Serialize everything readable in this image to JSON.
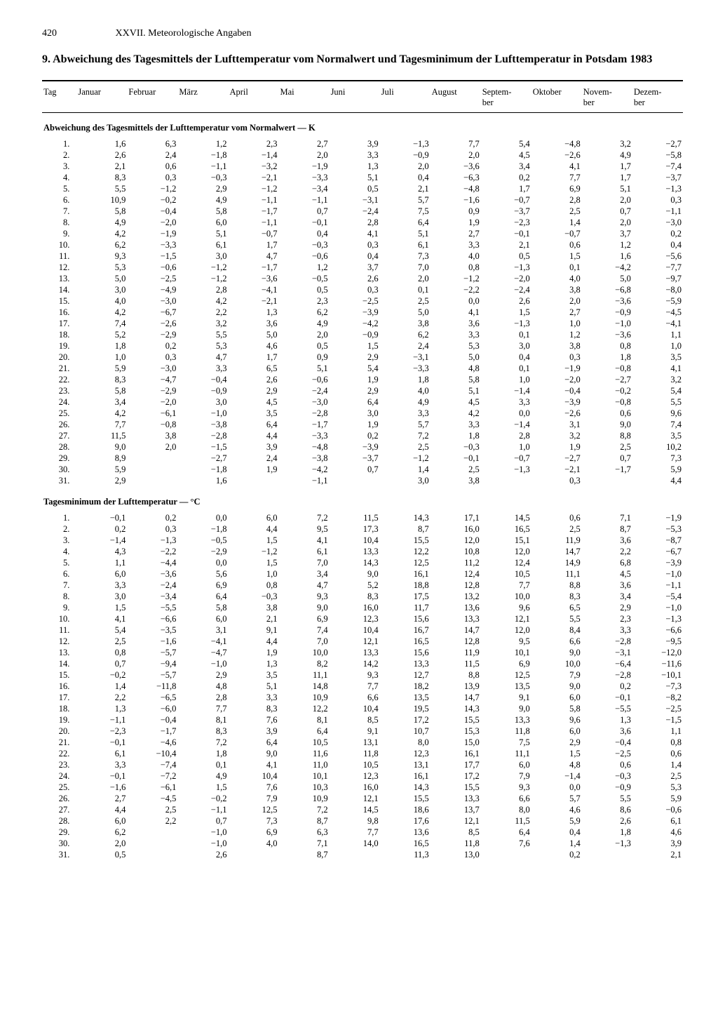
{
  "page_number": "420",
  "running_head": "XXVII. Meteorologische Angaben",
  "title": "9. Abweichung des Tagesmittels der Lufttemperatur vom Normalwert und Tagesminimum der Lufttemperatur in Potsdam 1983",
  "col_day": "Tag",
  "months": [
    "Januar",
    "Februar",
    "März",
    "April",
    "Mai",
    "Juni",
    "Juli",
    "August",
    "Septem-\nber",
    "Oktober",
    "Novem-\nber",
    "Dezem-\nber"
  ],
  "section1": "Abweichung des Tagesmittels der Lufttemperatur vom Normalwert — K",
  "section2": "Tagesminimum der Lufttemperatur — °C",
  "t1": [
    [
      "1,6",
      "6,3",
      "1,2",
      "2,3",
      "2,7",
      "3,9",
      "−1,3",
      "7,7",
      "5,4",
      "−4,8",
      "3,2",
      "−2,7"
    ],
    [
      "2,6",
      "2,4",
      "−1,8",
      "−1,4",
      "2,0",
      "3,3",
      "−0,9",
      "2,0",
      "4,5",
      "−2,6",
      "4,9",
      "−5,8"
    ],
    [
      "2,1",
      "0,6",
      "−1,1",
      "−3,2",
      "−1,9",
      "1,3",
      "2,0",
      "−3,6",
      "3,4",
      "4,1",
      "1,7",
      "−7,4"
    ],
    [
      "8,3",
      "0,3",
      "−0,3",
      "−2,1",
      "−3,3",
      "5,1",
      "0,4",
      "−6,3",
      "0,2",
      "7,7",
      "1,7",
      "−3,7"
    ],
    [
      "5,5",
      "−1,2",
      "2,9",
      "−1,2",
      "−3,4",
      "0,5",
      "2,1",
      "−4,8",
      "1,7",
      "6,9",
      "5,1",
      "−1,3"
    ],
    [
      "10,9",
      "−0,2",
      "4,9",
      "−1,1",
      "−1,1",
      "−3,1",
      "5,7",
      "−1,6",
      "−0,7",
      "2,8",
      "2,0",
      "0,3"
    ],
    [
      "5,8",
      "−0,4",
      "5,8",
      "−1,7",
      "0,7",
      "−2,4",
      "7,5",
      "0,9",
      "−3,7",
      "2,5",
      "0,7",
      "−1,1"
    ],
    [
      "4,9",
      "−2,0",
      "6,0",
      "−1,1",
      "−0,1",
      "2,8",
      "6,4",
      "1,9",
      "−2,3",
      "1,4",
      "2,0",
      "−3,0"
    ],
    [
      "4,2",
      "−1,9",
      "5,1",
      "−0,7",
      "0,4",
      "4,1",
      "5,1",
      "2,7",
      "−0,1",
      "−0,7",
      "3,7",
      "0,2"
    ],
    [
      "6,2",
      "−3,3",
      "6,1",
      "1,7",
      "−0,3",
      "0,3",
      "6,1",
      "3,3",
      "2,1",
      "0,6",
      "1,2",
      "0,4"
    ],
    [
      "9,3",
      "−1,5",
      "3,0",
      "4,7",
      "−0,6",
      "0,4",
      "7,3",
      "4,0",
      "0,5",
      "1,5",
      "1,6",
      "−5,6"
    ],
    [
      "5,3",
      "−0,6",
      "−1,2",
      "−1,7",
      "1,2",
      "3,7",
      "7,0",
      "0,8",
      "−1,3",
      "0,1",
      "−4,2",
      "−7,7"
    ],
    [
      "5,0",
      "−2,5",
      "−1,2",
      "−3,6",
      "−0,5",
      "2,6",
      "2,0",
      "−1,2",
      "−2,0",
      "4,0",
      "5,0",
      "−9,7"
    ],
    [
      "3,0",
      "−4,9",
      "2,8",
      "−4,1",
      "0,5",
      "0,3",
      "0,1",
      "−2,2",
      "−2,4",
      "3,8",
      "−6,8",
      "−8,0"
    ],
    [
      "4,0",
      "−3,0",
      "4,2",
      "−2,1",
      "2,3",
      "−2,5",
      "2,5",
      "0,0",
      "2,6",
      "2,0",
      "−3,6",
      "−5,9"
    ],
    [
      "4,2",
      "−6,7",
      "2,2",
      "1,3",
      "6,2",
      "−3,9",
      "5,0",
      "4,1",
      "1,5",
      "2,7",
      "−0,9",
      "−4,5"
    ],
    [
      "7,4",
      "−2,6",
      "3,2",
      "3,6",
      "4,9",
      "−4,2",
      "3,8",
      "3,6",
      "−1,3",
      "1,0",
      "−1,0",
      "−4,1"
    ],
    [
      "5,2",
      "−2,9",
      "5,5",
      "5,0",
      "2,0",
      "−0,9",
      "6,2",
      "3,3",
      "0,1",
      "1,2",
      "−3,6",
      "1,1"
    ],
    [
      "1,8",
      "0,2",
      "5,3",
      "4,6",
      "0,5",
      "1,5",
      "2,4",
      "5,3",
      "3,0",
      "3,8",
      "0,8",
      "1,0"
    ],
    [
      "1,0",
      "0,3",
      "4,7",
      "1,7",
      "0,9",
      "2,9",
      "−3,1",
      "5,0",
      "0,4",
      "0,3",
      "1,8",
      "3,5"
    ],
    [
      "5,9",
      "−3,0",
      "3,3",
      "6,5",
      "5,1",
      "5,4",
      "−3,3",
      "4,8",
      "0,1",
      "−1,9",
      "−0,8",
      "4,1"
    ],
    [
      "8,3",
      "−4,7",
      "−0,4",
      "2,6",
      "−0,6",
      "1,9",
      "1,8",
      "5,8",
      "1,0",
      "−2,0",
      "−2,7",
      "3,2"
    ],
    [
      "5,8",
      "−2,9",
      "−0,9",
      "2,9",
      "−2,4",
      "2,9",
      "4,0",
      "5,1",
      "−1,4",
      "−0,4",
      "−0,2",
      "5,4"
    ],
    [
      "3,4",
      "−2,0",
      "3,0",
      "4,5",
      "−3,0",
      "6,4",
      "4,9",
      "4,5",
      "3,3",
      "−3,9",
      "−0,8",
      "5,5"
    ],
    [
      "4,2",
      "−6,1",
      "−1,0",
      "3,5",
      "−2,8",
      "3,0",
      "3,3",
      "4,2",
      "0,0",
      "−2,6",
      "0,6",
      "9,6"
    ],
    [
      "7,7",
      "−0,8",
      "−3,8",
      "6,4",
      "−1,7",
      "1,9",
      "5,7",
      "3,3",
      "−1,4",
      "3,1",
      "9,0",
      "7,4"
    ],
    [
      "11,5",
      "3,8",
      "−2,8",
      "4,4",
      "−3,3",
      "0,2",
      "7,2",
      "1,8",
      "2,8",
      "3,2",
      "8,8",
      "3,5"
    ],
    [
      "9,0",
      "2,0",
      "−1,5",
      "3,9",
      "−4,8",
      "−3,9",
      "2,5",
      "−0,3",
      "1,0",
      "1,9",
      "2,5",
      "10,2"
    ],
    [
      "8,9",
      "",
      "−2,7",
      "2,4",
      "−3,8",
      "−3,7",
      "−1,2",
      "−0,1",
      "−0,7",
      "−2,7",
      "0,7",
      "7,3"
    ],
    [
      "5,9",
      "",
      "−1,8",
      "1,9",
      "−4,2",
      "0,7",
      "1,4",
      "2,5",
      "−1,3",
      "−2,1",
      "−1,7",
      "5,9"
    ],
    [
      "2,9",
      "",
      "1,6",
      "",
      "−1,1",
      "",
      "3,0",
      "3,8",
      "",
      "0,3",
      "",
      "4,4"
    ]
  ],
  "t2": [
    [
      "−0,1",
      "0,2",
      "0,0",
      "6,0",
      "7,2",
      "11,5",
      "14,3",
      "17,1",
      "14,5",
      "0,6",
      "7,1",
      "−1,9"
    ],
    [
      "0,2",
      "0,3",
      "−1,8",
      "4,4",
      "9,5",
      "17,3",
      "8,7",
      "16,0",
      "16,5",
      "2,5",
      "8,7",
      "−5,3"
    ],
    [
      "−1,4",
      "−1,3",
      "−0,5",
      "1,5",
      "4,1",
      "10,4",
      "15,5",
      "12,0",
      "15,1",
      "11,9",
      "3,6",
      "−8,7"
    ],
    [
      "4,3",
      "−2,2",
      "−2,9",
      "−1,2",
      "6,1",
      "13,3",
      "12,2",
      "10,8",
      "12,0",
      "14,7",
      "2,2",
      "−6,7"
    ],
    [
      "1,1",
      "−4,4",
      "0,0",
      "1,5",
      "7,0",
      "14,3",
      "12,5",
      "11,2",
      "12,4",
      "14,9",
      "6,8",
      "−3,9"
    ],
    [
      "6,0",
      "−3,6",
      "5,6",
      "1,0",
      "3,4",
      "9,0",
      "16,1",
      "12,4",
      "10,5",
      "11,1",
      "4,5",
      "−1,0"
    ],
    [
      "3,3",
      "−2,4",
      "6,9",
      "0,8",
      "4,7",
      "5,2",
      "18,8",
      "12,8",
      "7,7",
      "8,8",
      "3,6",
      "−1,1"
    ],
    [
      "3,0",
      "−3,4",
      "6,4",
      "−0,3",
      "9,3",
      "8,3",
      "17,5",
      "13,2",
      "10,0",
      "8,3",
      "3,4",
      "−5,4"
    ],
    [
      "1,5",
      "−5,5",
      "5,8",
      "3,8",
      "9,0",
      "16,0",
      "11,7",
      "13,6",
      "9,6",
      "6,5",
      "2,9",
      "−1,0"
    ],
    [
      "4,1",
      "−6,6",
      "6,0",
      "2,1",
      "6,9",
      "12,3",
      "15,6",
      "13,3",
      "12,1",
      "5,5",
      "2,3",
      "−1,3"
    ],
    [
      "5,4",
      "−3,5",
      "3,1",
      "9,1",
      "7,4",
      "10,4",
      "16,7",
      "14,7",
      "12,0",
      "8,4",
      "3,3",
      "−6,6"
    ],
    [
      "2,5",
      "−1,6",
      "−4,1",
      "4,4",
      "7,0",
      "12,1",
      "16,5",
      "12,8",
      "9,5",
      "6,6",
      "−2,8",
      "−9,5"
    ],
    [
      "0,8",
      "−5,7",
      "−4,7",
      "1,9",
      "10,0",
      "13,3",
      "15,6",
      "11,9",
      "10,1",
      "9,0",
      "−3,1",
      "−12,0"
    ],
    [
      "0,7",
      "−9,4",
      "−1,0",
      "1,3",
      "8,2",
      "14,2",
      "13,3",
      "11,5",
      "6,9",
      "10,0",
      "−6,4",
      "−11,6"
    ],
    [
      "−0,2",
      "−5,7",
      "2,9",
      "3,5",
      "11,1",
      "9,3",
      "12,7",
      "8,8",
      "12,5",
      "7,9",
      "−2,8",
      "−10,1"
    ],
    [
      "1,4",
      "−11,8",
      "4,8",
      "5,1",
      "14,8",
      "7,7",
      "18,2",
      "13,9",
      "13,5",
      "9,0",
      "0,2",
      "−7,3"
    ],
    [
      "2,2",
      "−6,5",
      "2,8",
      "3,3",
      "10,9",
      "6,6",
      "13,5",
      "14,7",
      "9,1",
      "6,0",
      "−0,1",
      "−8,2"
    ],
    [
      "1,3",
      "−6,0",
      "7,7",
      "8,3",
      "12,2",
      "10,4",
      "19,5",
      "14,3",
      "9,0",
      "5,8",
      "−5,5",
      "−2,5"
    ],
    [
      "−1,1",
      "−0,4",
      "8,1",
      "7,6",
      "8,1",
      "8,5",
      "17,2",
      "15,5",
      "13,3",
      "9,6",
      "1,3",
      "−1,5"
    ],
    [
      "−2,3",
      "−1,7",
      "8,3",
      "3,9",
      "6,4",
      "9,1",
      "10,7",
      "15,3",
      "11,8",
      "6,0",
      "3,6",
      "1,1"
    ],
    [
      "−0,1",
      "−4,6",
      "7,2",
      "6,4",
      "10,5",
      "13,1",
      "8,0",
      "15,0",
      "7,5",
      "2,9",
      "−0,4",
      "0,8"
    ],
    [
      "6,1",
      "−10,4",
      "1,8",
      "9,0",
      "11,6",
      "11,8",
      "12,3",
      "16,1",
      "11,1",
      "1,5",
      "−2,5",
      "0,6"
    ],
    [
      "3,3",
      "−7,4",
      "0,1",
      "4,1",
      "11,0",
      "10,5",
      "13,1",
      "17,7",
      "6,0",
      "4,8",
      "0,6",
      "1,4"
    ],
    [
      "−0,1",
      "−7,2",
      "4,9",
      "10,4",
      "10,1",
      "12,3",
      "16,1",
      "17,2",
      "7,9",
      "−1,4",
      "−0,3",
      "2,5"
    ],
    [
      "−1,6",
      "−6,1",
      "1,5",
      "7,6",
      "10,3",
      "16,0",
      "14,3",
      "15,5",
      "9,3",
      "0,0",
      "−0,9",
      "5,3"
    ],
    [
      "2,7",
      "−4,5",
      "−0,2",
      "7,9",
      "10,9",
      "12,1",
      "15,5",
      "13,3",
      "6,6",
      "5,7",
      "5,5",
      "5,9"
    ],
    [
      "4,4",
      "2,5",
      "−1,1",
      "12,5",
      "7,2",
      "14,5",
      "18,6",
      "13,7",
      "8,0",
      "4,6",
      "8,6",
      "−0,6"
    ],
    [
      "6,0",
      "2,2",
      "0,7",
      "7,3",
      "8,7",
      "9,8",
      "17,6",
      "12,1",
      "11,5",
      "5,9",
      "2,6",
      "6,1"
    ],
    [
      "6,2",
      "",
      "−1,0",
      "6,9",
      "6,3",
      "7,7",
      "13,6",
      "8,5",
      "6,4",
      "0,4",
      "1,8",
      "4,6"
    ],
    [
      "2,0",
      "",
      "−1,0",
      "4,0",
      "7,1",
      "14,0",
      "16,5",
      "11,8",
      "7,6",
      "1,4",
      "−1,3",
      "3,9"
    ],
    [
      "0,5",
      "",
      "2,6",
      "",
      "8,7",
      "",
      "11,3",
      "13,0",
      "",
      "0,2",
      "",
      "2,1"
    ]
  ]
}
